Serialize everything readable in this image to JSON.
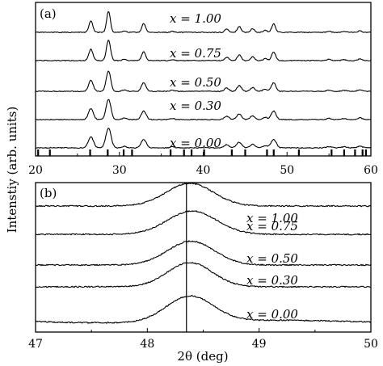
{
  "y_axis_title": "Intenstiy  (arb. units)",
  "chart_data": [
    {
      "panel": "(a)",
      "type": "line",
      "xlim": [
        20,
        60
      ],
      "x_ticks": [
        20,
        30,
        40,
        50,
        60
      ],
      "reference_bars": [
        20.3,
        21.7,
        26.5,
        28.6,
        30.5,
        31.5,
        36.1,
        37.7,
        38.6,
        40.1,
        43.4,
        45.0,
        47.6,
        48.4,
        51.4,
        55.3,
        56.8,
        58.1,
        59.0,
        59.4
      ],
      "peaks": [
        {
          "x": 26.6,
          "h": 0.55,
          "w": 0.22
        },
        {
          "x": 28.7,
          "h": 1.0,
          "w": 0.22
        },
        {
          "x": 30.6,
          "h": 0.07,
          "w": 0.2
        },
        {
          "x": 32.9,
          "h": 0.42,
          "w": 0.22
        },
        {
          "x": 36.3,
          "h": 0.05,
          "w": 0.2
        },
        {
          "x": 42.8,
          "h": 0.16,
          "w": 0.22
        },
        {
          "x": 44.3,
          "h": 0.28,
          "w": 0.22
        },
        {
          "x": 45.9,
          "h": 0.18,
          "w": 0.22
        },
        {
          "x": 47.4,
          "h": 0.1,
          "w": 0.22
        },
        {
          "x": 48.4,
          "h": 0.42,
          "w": 0.22
        },
        {
          "x": 55.0,
          "h": 0.06,
          "w": 0.22
        },
        {
          "x": 56.8,
          "h": 0.05,
          "w": 0.22
        },
        {
          "x": 58.7,
          "h": 0.08,
          "w": 0.22
        }
      ],
      "series": [
        {
          "name": "x = 1.00"
        },
        {
          "name": "x = 0.75"
        },
        {
          "name": "x = 0.50"
        },
        {
          "name": "x = 0.30"
        },
        {
          "name": "x = 0.00"
        }
      ]
    },
    {
      "panel": "(b)",
      "type": "line",
      "xlabel": "2θ (deg)",
      "xlim": [
        47,
        50
      ],
      "x_ticks": [
        47,
        48,
        49,
        50
      ],
      "reference_line_x": 48.35,
      "series": [
        {
          "name": "x = 1.00",
          "center": 48.38,
          "width": 0.21,
          "height": 0.88
        },
        {
          "name": "x = 0.75",
          "center": 48.4,
          "width": 0.22,
          "height": 0.9
        },
        {
          "name": "x = 0.50",
          "center": 48.39,
          "width": 0.21,
          "height": 0.92
        },
        {
          "name": "x = 0.30",
          "center": 48.38,
          "width": 0.2,
          "height": 0.94
        },
        {
          "name": "x = 0.00",
          "center": 48.38,
          "width": 0.21,
          "height": 1.0
        }
      ]
    }
  ]
}
